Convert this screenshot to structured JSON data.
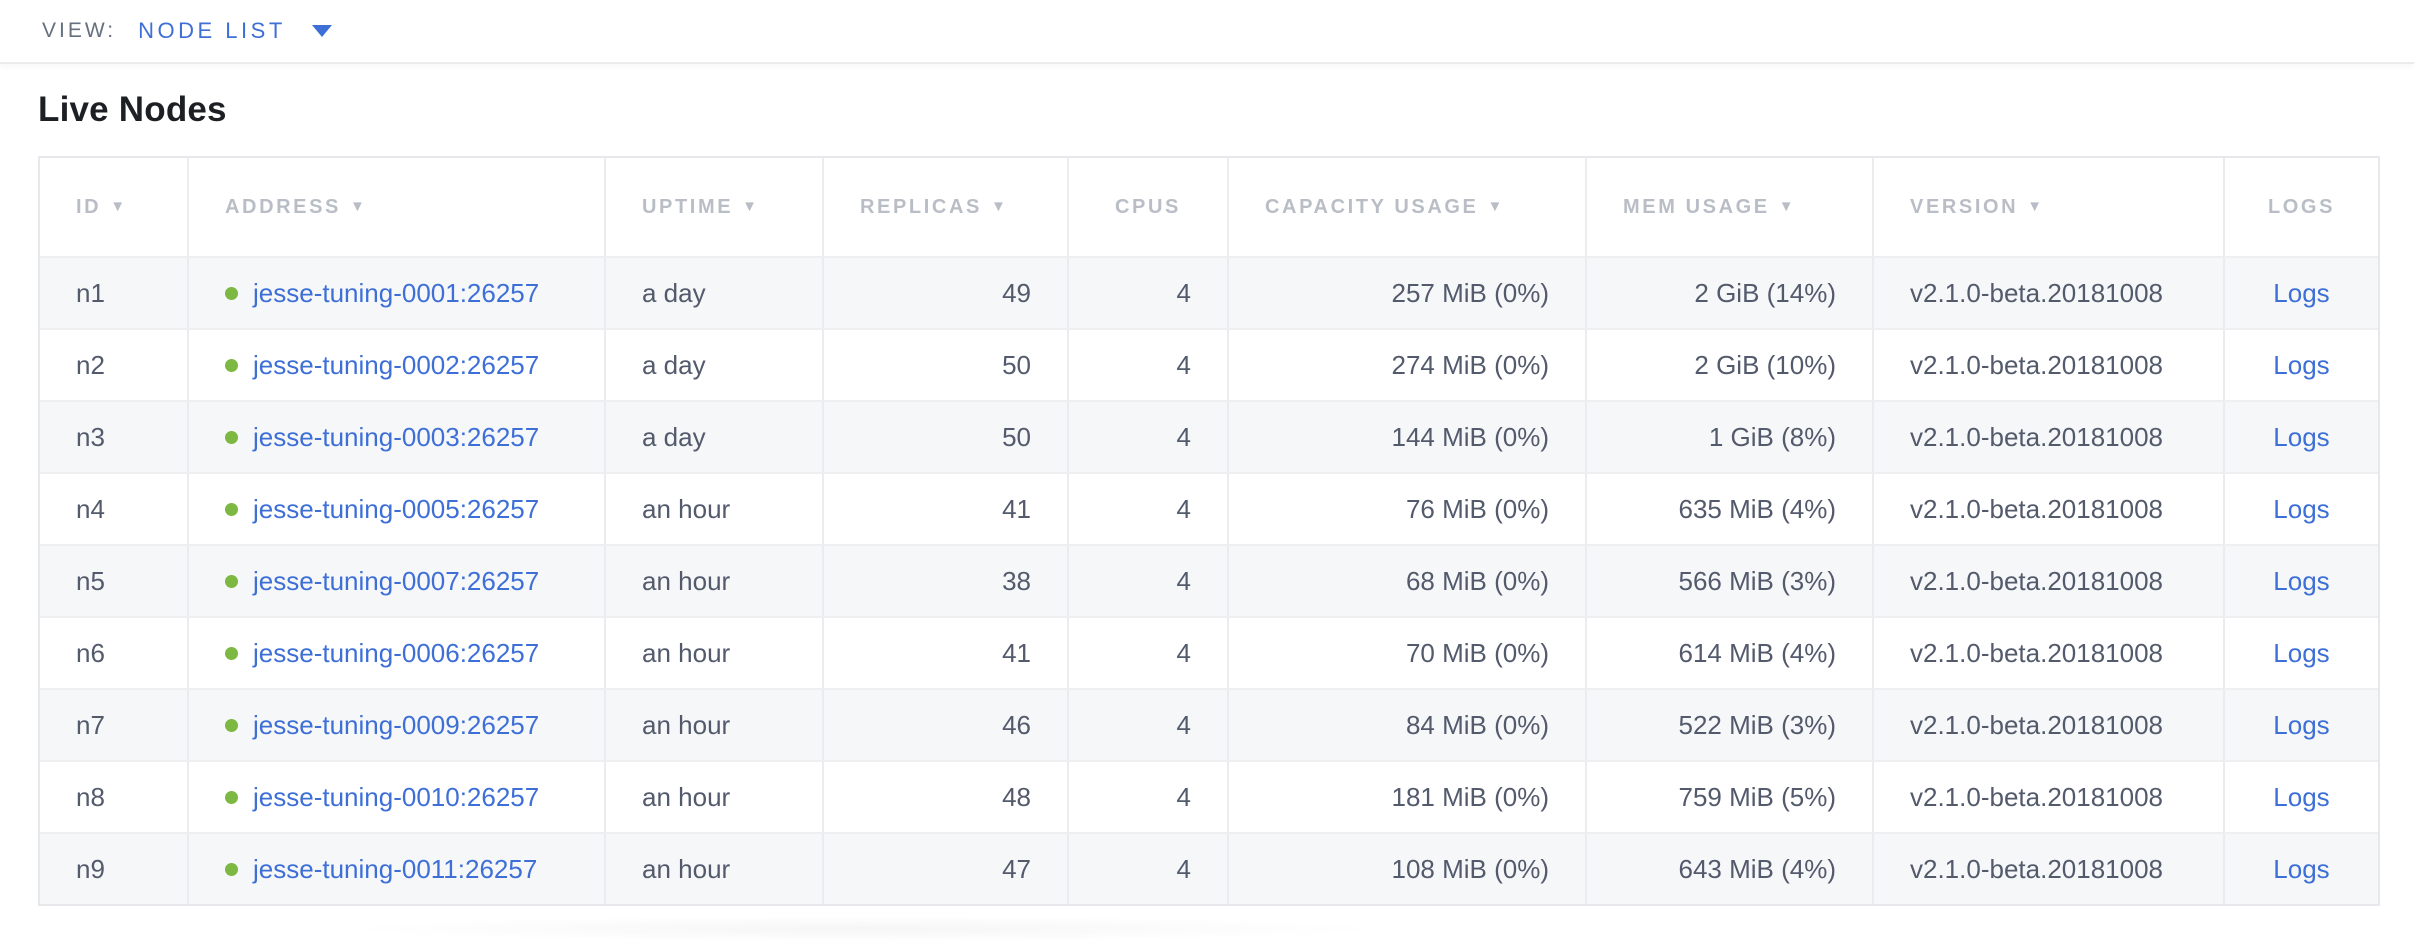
{
  "view_bar": {
    "label": "VIEW:",
    "selected": "NODE LIST"
  },
  "page": {
    "title": "Live Nodes"
  },
  "colors": {
    "accent_link_blue": "#3e6fd7",
    "live_status_green": "#7cb842",
    "header_text_gray": "#b9bec6",
    "cell_text": "#525a6c",
    "row_stripe": "#f6f7f8",
    "border": "#e6e8eb"
  },
  "table": {
    "columns": [
      {
        "key": "id",
        "label": "ID",
        "sortable": true,
        "header_align": "left",
        "cell_align": "left"
      },
      {
        "key": "address",
        "label": "ADDRESS",
        "sortable": true,
        "header_align": "left",
        "cell_align": "left"
      },
      {
        "key": "uptime",
        "label": "UPTIME",
        "sortable": true,
        "header_align": "left",
        "cell_align": "left"
      },
      {
        "key": "replicas",
        "label": "REPLICAS",
        "sortable": true,
        "header_align": "left",
        "cell_align": "right"
      },
      {
        "key": "cpus",
        "label": "CPUS",
        "sortable": false,
        "header_align": "center",
        "cell_align": "right"
      },
      {
        "key": "capacity",
        "label": "CAPACITY USAGE",
        "sortable": true,
        "header_align": "left",
        "cell_align": "right"
      },
      {
        "key": "mem",
        "label": "MEM USAGE",
        "sortable": true,
        "header_align": "left",
        "cell_align": "right"
      },
      {
        "key": "version",
        "label": "VERSION",
        "sortable": true,
        "header_align": "left",
        "cell_align": "left"
      },
      {
        "key": "logs",
        "label": "LOGS",
        "sortable": false,
        "header_align": "center",
        "cell_align": "center"
      }
    ],
    "sort_arrow_glyph": "▼",
    "rows": [
      {
        "id": "n1",
        "status": "live",
        "address": "jesse-tuning-0001:26257",
        "uptime": "a day",
        "replicas": "49",
        "cpus": "4",
        "capacity": "257 MiB (0%)",
        "mem": "2 GiB (14%)",
        "version": "v2.1.0-beta.20181008",
        "logs": "Logs"
      },
      {
        "id": "n2",
        "status": "live",
        "address": "jesse-tuning-0002:26257",
        "uptime": "a day",
        "replicas": "50",
        "cpus": "4",
        "capacity": "274 MiB (0%)",
        "mem": "2 GiB (10%)",
        "version": "v2.1.0-beta.20181008",
        "logs": "Logs"
      },
      {
        "id": "n3",
        "status": "live",
        "address": "jesse-tuning-0003:26257",
        "uptime": "a day",
        "replicas": "50",
        "cpus": "4",
        "capacity": "144 MiB (0%)",
        "mem": "1 GiB (8%)",
        "version": "v2.1.0-beta.20181008",
        "logs": "Logs"
      },
      {
        "id": "n4",
        "status": "live",
        "address": "jesse-tuning-0005:26257",
        "uptime": "an hour",
        "replicas": "41",
        "cpus": "4",
        "capacity": "76 MiB (0%)",
        "mem": "635 MiB (4%)",
        "version": "v2.1.0-beta.20181008",
        "logs": "Logs"
      },
      {
        "id": "n5",
        "status": "live",
        "address": "jesse-tuning-0007:26257",
        "uptime": "an hour",
        "replicas": "38",
        "cpus": "4",
        "capacity": "68 MiB (0%)",
        "mem": "566 MiB (3%)",
        "version": "v2.1.0-beta.20181008",
        "logs": "Logs"
      },
      {
        "id": "n6",
        "status": "live",
        "address": "jesse-tuning-0006:26257",
        "uptime": "an hour",
        "replicas": "41",
        "cpus": "4",
        "capacity": "70 MiB (0%)",
        "mem": "614 MiB (4%)",
        "version": "v2.1.0-beta.20181008",
        "logs": "Logs"
      },
      {
        "id": "n7",
        "status": "live",
        "address": "jesse-tuning-0009:26257",
        "uptime": "an hour",
        "replicas": "46",
        "cpus": "4",
        "capacity": "84 MiB (0%)",
        "mem": "522 MiB (3%)",
        "version": "v2.1.0-beta.20181008",
        "logs": "Logs"
      },
      {
        "id": "n8",
        "status": "live",
        "address": "jesse-tuning-0010:26257",
        "uptime": "an hour",
        "replicas": "48",
        "cpus": "4",
        "capacity": "181 MiB (0%)",
        "mem": "759 MiB (5%)",
        "version": "v2.1.0-beta.20181008",
        "logs": "Logs"
      },
      {
        "id": "n9",
        "status": "live",
        "address": "jesse-tuning-0011:26257",
        "uptime": "an hour",
        "replicas": "47",
        "cpus": "4",
        "capacity": "108 MiB (0%)",
        "mem": "643 MiB (4%)",
        "version": "v2.1.0-beta.20181008",
        "logs": "Logs"
      }
    ]
  }
}
